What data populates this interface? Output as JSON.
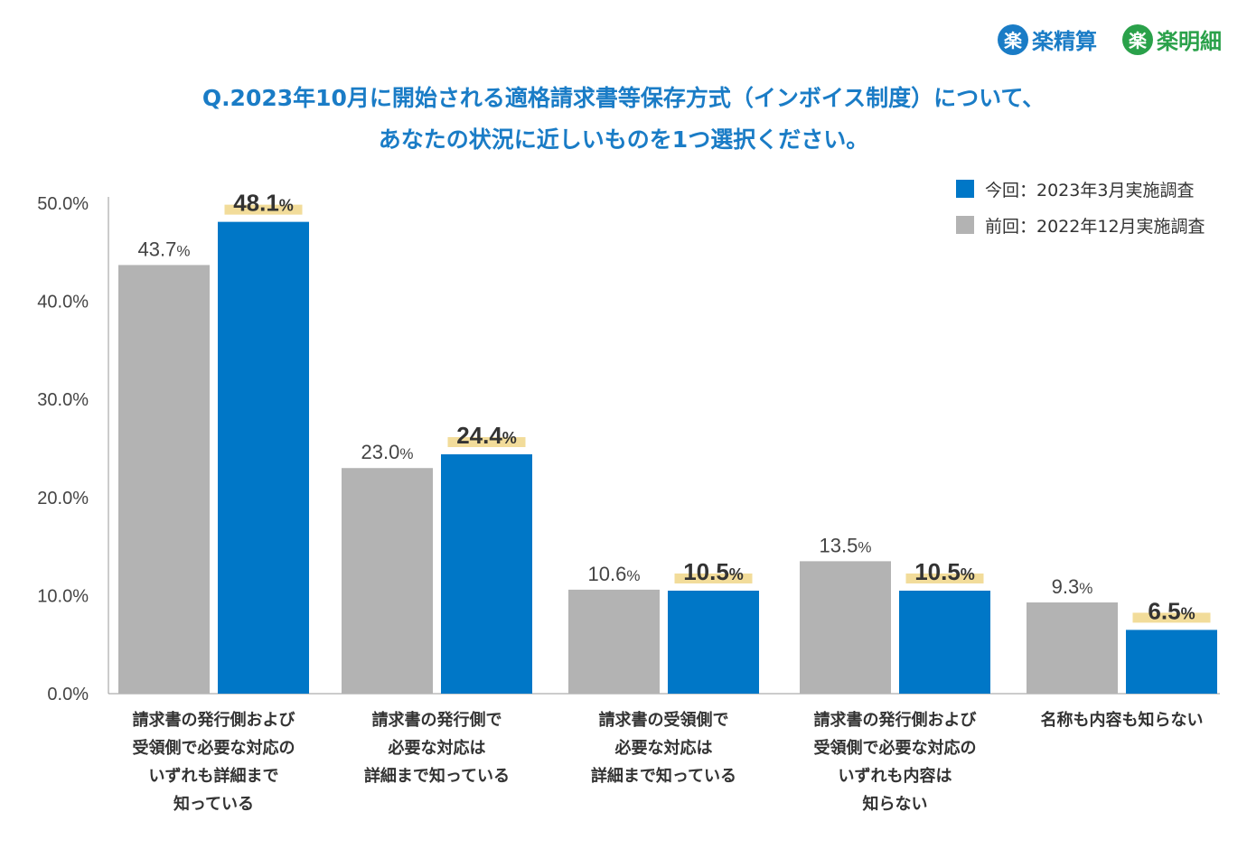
{
  "logos": [
    {
      "glyph": "楽",
      "text": "楽精算",
      "color": "#1a7cc6"
    },
    {
      "glyph": "楽",
      "text": "楽明細",
      "color": "#2aa14a"
    }
  ],
  "title_lines": [
    "Q.2023年10月に開始される適格請求書等保存方式（インボイス制度）について、",
    "あなたの状況に近しいものを1つ選択ください。"
  ],
  "colors": {
    "current": "#0077c7",
    "previous": "#b3b3b3",
    "highlight": "#f2dc9a",
    "axis": "#999999"
  },
  "chart_data": {
    "type": "bar",
    "categories": [
      "請求書の発行側および\n受領側で必要な対応の\nいずれも詳細まで\n知っている",
      "請求書の発行側で\n必要な対応は\n詳細まで知っている",
      "請求書の受領側で\n必要な対応は\n詳細まで知っている",
      "請求書の発行側および\n受領側で必要な対応の\nいずれも内容は\n知らない",
      "名称も内容も知らない"
    ],
    "series": [
      {
        "name": "前回：2022年12月実施調査",
        "values": [
          43.7,
          23.0,
          10.6,
          13.5,
          9.3
        ],
        "color": "#b3b3b3"
      },
      {
        "name": "今回：2023年3月実施調査",
        "values": [
          48.1,
          24.4,
          10.5,
          10.5,
          6.5
        ],
        "color": "#0077c7"
      }
    ],
    "ylim": [
      0,
      50
    ],
    "yticks": [
      0,
      10,
      20,
      30,
      40,
      50
    ],
    "ytick_labels": [
      "0.0%",
      "10.0%",
      "20.0%",
      "30.0%",
      "40.0%",
      "50.0%"
    ],
    "data_label_unit": "%",
    "legend_position": "top-right",
    "grid": false
  }
}
